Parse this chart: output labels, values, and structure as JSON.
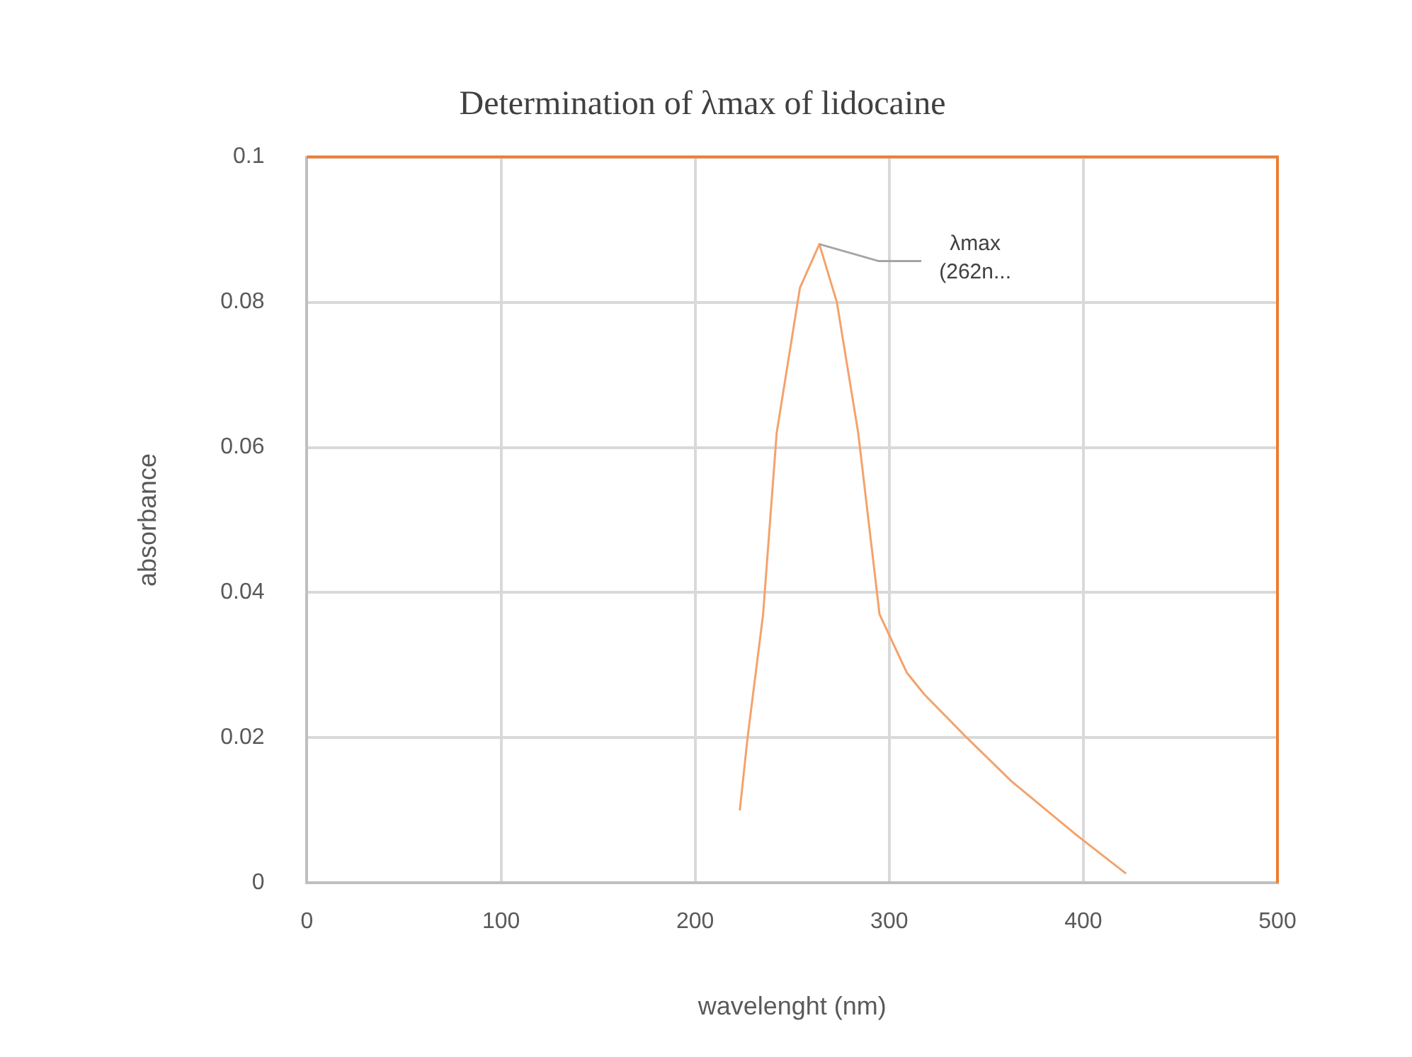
{
  "chart_data": {
    "type": "line",
    "title": "Determination of λmax of lidocaine",
    "xlabel": "wavelenght (nm)",
    "ylabel": "absorbance",
    "x": [
      223,
      227,
      235,
      242,
      254,
      264,
      273,
      284,
      295,
      309,
      318,
      340,
      363,
      397,
      422
    ],
    "series": [
      {
        "color": "#f4a26b",
        "values": [
          0.01,
          0.02,
          0.037,
          0.062,
          0.082,
          0.088,
          0.08,
          0.062,
          0.037,
          0.029,
          0.026,
          0.02,
          0.014,
          0.0065,
          0.0013
        ]
      }
    ],
    "xlim": [
      0,
      500
    ],
    "xticks": [
      0,
      100,
      200,
      300,
      400,
      500
    ],
    "ylim": [
      0,
      0.1
    ],
    "yticks": [
      0,
      0.02,
      0.04,
      0.06,
      0.08,
      0.1
    ],
    "annotations": [
      {
        "text": "λmax (262n...",
        "x": 264,
        "y": 0.088
      }
    ],
    "grid": true,
    "legend": false,
    "marker": "none",
    "line_style": "solid"
  }
}
